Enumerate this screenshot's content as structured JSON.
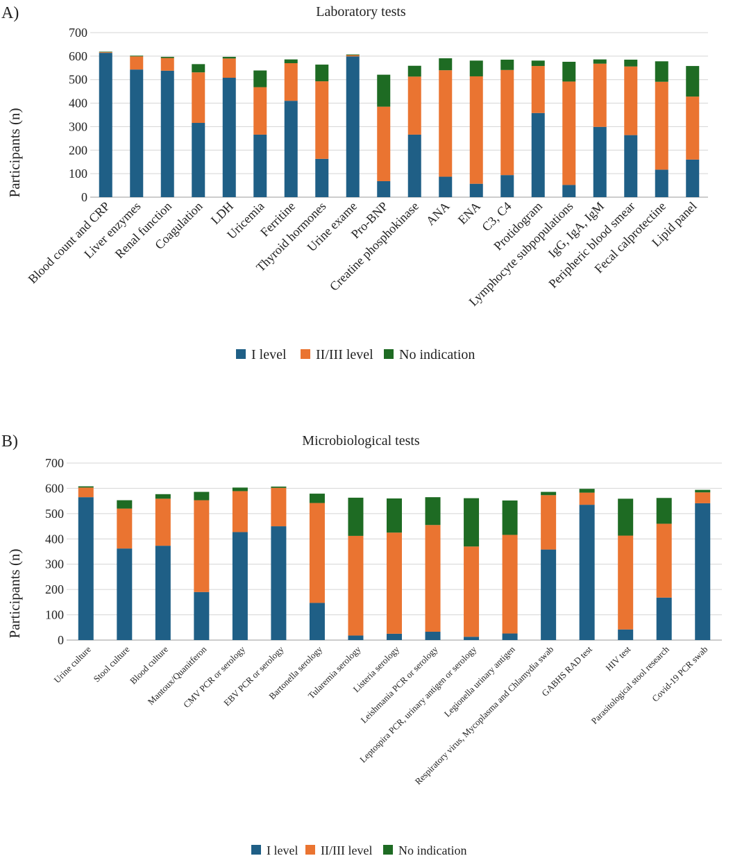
{
  "colors": {
    "level1": "#1f5f86",
    "level23": "#ea7431",
    "none": "#1e6b23",
    "grid": "#d4d4d4",
    "axis": "#999999"
  },
  "chart_data": [
    {
      "panel_label": "A)",
      "type": "bar",
      "stacked": true,
      "title": "Laboratory tests",
      "xlabel": "",
      "ylabel": "Participants (n)",
      "ylim": [
        0,
        700
      ],
      "yticks": [
        "0",
        "100",
        "200",
        "300",
        "400",
        "500",
        "600",
        "700"
      ],
      "grid": true,
      "legend_position": "bottom",
      "categories": [
        "Blood count and CRP",
        "Liver enzymes",
        "Renal function",
        "Coagulation",
        "LDH",
        "Uricemia",
        "Ferritine",
        "Thyroid hormones",
        "Urine exame",
        "Pro-BNP",
        "Creatine phosphokinase",
        "ANA",
        "ENA",
        "C3, C4",
        "Protidogram",
        "Lymphocyte subpopulations",
        "IgG, IgA, IgM",
        "Peripheric blood smear",
        "Fecal calprotectine",
        "Lipid panel"
      ],
      "series": [
        {
          "name": "I level",
          "values": [
            614,
            543,
            538,
            316,
            508,
            266,
            410,
            163,
            599,
            68,
            266,
            87,
            57,
            94,
            358,
            52,
            299,
            264,
            117,
            160
          ]
        },
        {
          "name": "II/III level",
          "values": [
            3,
            56,
            54,
            215,
            82,
            202,
            160,
            330,
            5,
            317,
            247,
            453,
            457,
            447,
            200,
            440,
            269,
            292,
            374,
            268
          ]
        },
        {
          "name": "No indication",
          "values": [
            2,
            3,
            5,
            35,
            7,
            71,
            16,
            71,
            3,
            136,
            46,
            51,
            67,
            44,
            23,
            84,
            18,
            29,
            87,
            130
          ]
        }
      ]
    },
    {
      "panel_label": "B)",
      "type": "bar",
      "stacked": true,
      "title": "Microbiological tests",
      "xlabel": "",
      "ylabel": "Participants (n)",
      "ylim": [
        0,
        700
      ],
      "yticks": [
        "0",
        "100",
        "200",
        "300",
        "400",
        "500",
        "600",
        "700"
      ],
      "grid": true,
      "legend_position": "bottom",
      "categories": [
        "Urine culture",
        "Stool culture",
        "Blood culture",
        "Mantoux/Quanitferon",
        "CMV PCR or serology",
        "EBV PCR or serology",
        "Bartonella serology",
        "Tularemia serology",
        "Listeria serology",
        "Leishmania PCR or serology",
        "Leptospira PCR, urinary antigen or serology",
        "Legionella urinary antigen",
        "Respiratory virus, Mycoplasma and Chlamydia swab",
        "GABHS RAD test",
        "HIV test",
        "Parasitological stool research",
        "Covid-19 PCR swab"
      ],
      "series": [
        {
          "name": "I level",
          "values": [
            565,
            362,
            373,
            190,
            427,
            450,
            147,
            18,
            25,
            33,
            13,
            26,
            358,
            535,
            42,
            168,
            541
          ]
        },
        {
          "name": "II/III level",
          "values": [
            38,
            158,
            186,
            363,
            162,
            152,
            395,
            394,
            400,
            422,
            357,
            390,
            215,
            48,
            371,
            292,
            43
          ]
        },
        {
          "name": "No indication",
          "values": [
            5,
            33,
            18,
            33,
            14,
            5,
            37,
            151,
            135,
            110,
            191,
            136,
            13,
            15,
            146,
            102,
            10
          ]
        }
      ]
    }
  ]
}
